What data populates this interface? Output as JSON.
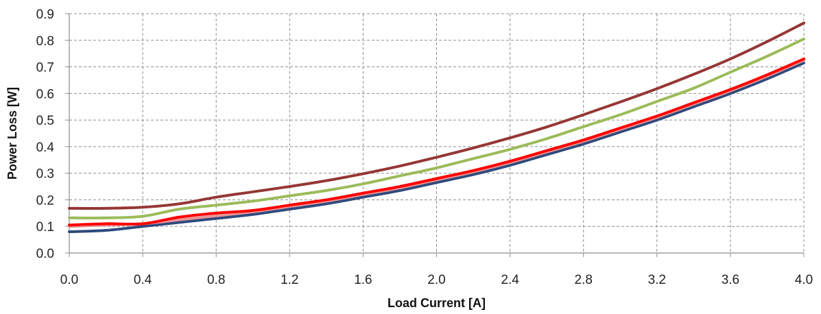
{
  "chart_data": {
    "type": "line",
    "title": "",
    "xlabel": "Load Current [A]",
    "ylabel": "Power Loss [W]",
    "xlim": [
      0.0,
      4.0
    ],
    "ylim": [
      0.0,
      0.9
    ],
    "x_ticks": [
      "0.0",
      "0.4",
      "0.8",
      "1.2",
      "1.6",
      "2.0",
      "2.4",
      "2.8",
      "3.2",
      "3.6",
      "4.0"
    ],
    "y_ticks": [
      "0.0",
      "0.1",
      "0.2",
      "0.3",
      "0.4",
      "0.5",
      "0.6",
      "0.7",
      "0.8",
      "0.9"
    ],
    "grid": true,
    "grid_style": "dashed",
    "legend": "none",
    "x": [
      0.0,
      0.2,
      0.4,
      0.6,
      0.8,
      1.0,
      1.2,
      1.4,
      1.6,
      1.8,
      2.0,
      2.2,
      2.4,
      2.6,
      2.8,
      3.0,
      3.2,
      3.4,
      3.6,
      3.8,
      4.0
    ],
    "series": [
      {
        "color": "#2e4a7d",
        "values": [
          0.08,
          0.085,
          0.1,
          0.115,
          0.13,
          0.145,
          0.165,
          0.185,
          0.21,
          0.235,
          0.265,
          0.295,
          0.33,
          0.37,
          0.41,
          0.455,
          0.5,
          0.55,
          0.6,
          0.655,
          0.715
        ]
      },
      {
        "color": "#e89494",
        "values": [
          0.1,
          0.105,
          0.11,
          0.125,
          0.14,
          0.155,
          0.175,
          0.195,
          0.22,
          0.245,
          0.275,
          0.305,
          0.34,
          0.38,
          0.42,
          0.465,
          0.51,
          0.56,
          0.61,
          0.665,
          0.725
        ]
      },
      {
        "color": "#ff0000",
        "values": [
          0.105,
          0.11,
          0.11,
          0.135,
          0.15,
          0.16,
          0.18,
          0.2,
          0.225,
          0.25,
          0.28,
          0.31,
          0.345,
          0.385,
          0.425,
          0.47,
          0.515,
          0.565,
          0.615,
          0.67,
          0.73
        ]
      },
      {
        "color": "#9bbb59",
        "values": [
          0.132,
          0.132,
          0.138,
          0.165,
          0.18,
          0.195,
          0.215,
          0.235,
          0.26,
          0.29,
          0.32,
          0.355,
          0.39,
          0.43,
          0.475,
          0.52,
          0.57,
          0.62,
          0.68,
          0.74,
          0.805
        ]
      },
      {
        "color": "#953735",
        "values": [
          0.168,
          0.168,
          0.172,
          0.185,
          0.21,
          0.23,
          0.25,
          0.272,
          0.298,
          0.327,
          0.36,
          0.395,
          0.433,
          0.474,
          0.52,
          0.568,
          0.618,
          0.672,
          0.73,
          0.795,
          0.865
        ]
      }
    ]
  }
}
